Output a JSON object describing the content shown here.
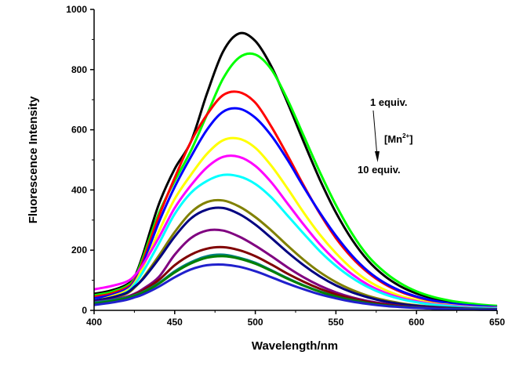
{
  "chart_data": {
    "type": "line",
    "title": "",
    "xlabel": "Wavelength/nm",
    "ylabel": "Fluorescence Intensity",
    "xlim": [
      400,
      650
    ],
    "ylim": [
      0,
      1000
    ],
    "xticks": [
      400,
      450,
      500,
      550,
      600,
      650
    ],
    "yticks": [
      0,
      200,
      400,
      600,
      800,
      1000
    ],
    "grid": false,
    "annotations": {
      "top": "1 equiv.",
      "middle_base": "[Mn",
      "middle_sup": "2+",
      "middle_close": "]",
      "bottom": "10 equiv."
    },
    "x": [
      400,
      410,
      420,
      425,
      430,
      440,
      450,
      460,
      470,
      480,
      490,
      500,
      510,
      520,
      530,
      540,
      550,
      560,
      570,
      580,
      590,
      600,
      610,
      620,
      630,
      640,
      650
    ],
    "series": [
      {
        "color": "#000000",
        "values": [
          55,
          65,
          85,
          110,
          180,
          350,
          470,
          560,
          720,
          860,
          920,
          895,
          810,
          690,
          560,
          435,
          325,
          235,
          165,
          115,
          80,
          56,
          40,
          29,
          22,
          17,
          14
        ]
      },
      {
        "color": "#00ff00",
        "values": [
          50,
          60,
          80,
          105,
          170,
          320,
          430,
          530,
          650,
          770,
          840,
          850,
          800,
          700,
          580,
          460,
          350,
          255,
          180,
          128,
          90,
          63,
          45,
          33,
          25,
          19,
          15
        ]
      },
      {
        "color": "#ff0000",
        "values": [
          45,
          55,
          75,
          100,
          160,
          310,
          440,
          560,
          650,
          715,
          725,
          690,
          610,
          515,
          415,
          322,
          240,
          175,
          125,
          88,
          62,
          44,
          31,
          23,
          17,
          13,
          10
        ]
      },
      {
        "color": "#0000ff",
        "values": [
          40,
          50,
          70,
          95,
          150,
          290,
          410,
          510,
          600,
          660,
          670,
          640,
          580,
          500,
          410,
          325,
          248,
          182,
          130,
          92,
          65,
          46,
          33,
          24,
          18,
          14,
          11
        ]
      },
      {
        "color": "#ffff00",
        "values": [
          30,
          45,
          65,
          90,
          140,
          260,
          370,
          450,
          520,
          565,
          570,
          540,
          480,
          405,
          325,
          252,
          190,
          138,
          98,
          69,
          48,
          34,
          24,
          18,
          13,
          10,
          8
        ]
      },
      {
        "color": "#ff00ff",
        "values": [
          70,
          80,
          95,
          115,
          150,
          240,
          340,
          415,
          475,
          510,
          510,
          480,
          425,
          355,
          285,
          220,
          165,
          120,
          85,
          60,
          42,
          30,
          21,
          16,
          12,
          9,
          7
        ]
      },
      {
        "color": "#00ffff",
        "values": [
          28,
          40,
          60,
          85,
          125,
          220,
          320,
          390,
          430,
          450,
          445,
          420,
          375,
          315,
          255,
          197,
          148,
          108,
          77,
          54,
          38,
          27,
          19,
          14,
          10,
          8,
          6
        ]
      },
      {
        "color": "#808000",
        "values": [
          25,
          38,
          55,
          75,
          105,
          180,
          260,
          325,
          360,
          365,
          345,
          310,
          265,
          215,
          168,
          127,
          94,
          68,
          48,
          34,
          24,
          17,
          12,
          9,
          7,
          5,
          4
        ]
      },
      {
        "color": "#000080",
        "values": [
          32,
          42,
          58,
          78,
          102,
          170,
          245,
          305,
          335,
          340,
          320,
          285,
          240,
          193,
          150,
          113,
          83,
          60,
          43,
          30,
          21,
          15,
          11,
          8,
          6,
          5,
          4
        ]
      },
      {
        "color": "#800080",
        "values": [
          28,
          35,
          45,
          55,
          70,
          110,
          185,
          240,
          265,
          265,
          245,
          215,
          180,
          143,
          110,
          82,
          60,
          43,
          31,
          22,
          15,
          11,
          8,
          6,
          5,
          4,
          3
        ]
      },
      {
        "color": "#800000",
        "values": [
          24,
          32,
          42,
          52,
          65,
          100,
          150,
          185,
          205,
          210,
          200,
          180,
          152,
          122,
          95,
          72,
          53,
          39,
          28,
          20,
          14,
          10,
          7,
          5,
          4,
          3,
          3
        ]
      },
      {
        "color": "#008080",
        "values": [
          26,
          33,
          42,
          50,
          60,
          90,
          130,
          160,
          180,
          185,
          175,
          158,
          133,
          107,
          83,
          63,
          46,
          34,
          24,
          17,
          12,
          9,
          6,
          5,
          4,
          3,
          2
        ]
      },
      {
        "color": "#008000",
        "values": [
          22,
          30,
          40,
          48,
          58,
          88,
          126,
          156,
          175,
          180,
          172,
          155,
          131,
          105,
          82,
          62,
          46,
          33,
          24,
          17,
          12,
          9,
          6,
          5,
          4,
          3,
          2
        ]
      },
      {
        "color": "#2020cc",
        "values": [
          18,
          25,
          35,
          43,
          52,
          78,
          110,
          136,
          150,
          152,
          145,
          130,
          110,
          89,
          70,
          53,
          40,
          29,
          21,
          15,
          11,
          8,
          6,
          4,
          3,
          2,
          2
        ]
      }
    ]
  }
}
